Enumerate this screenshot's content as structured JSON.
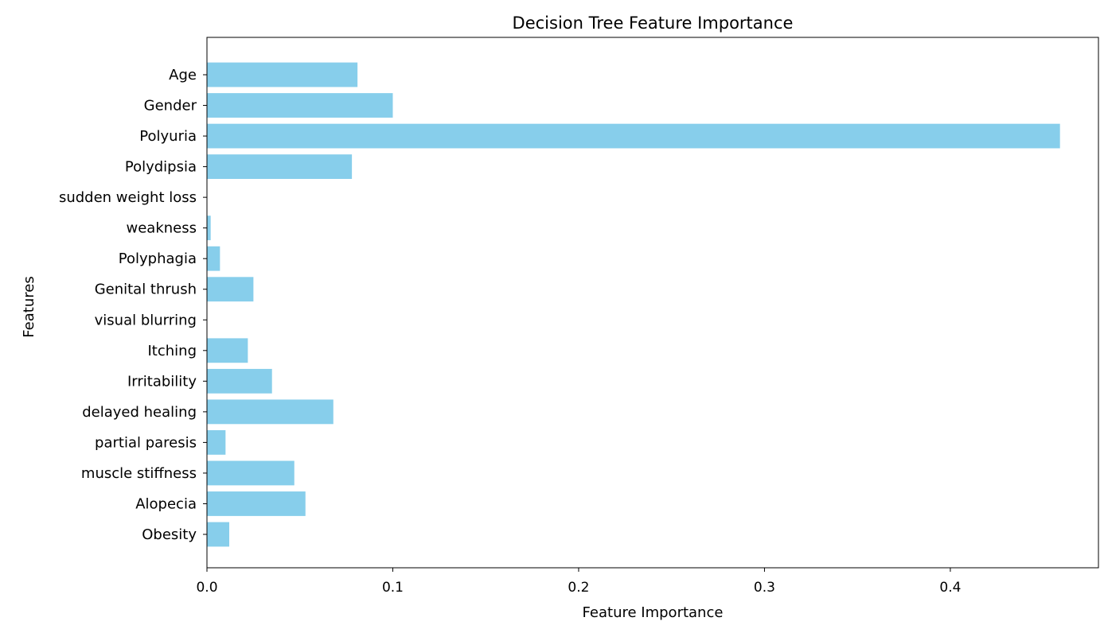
{
  "chart_data": {
    "type": "bar",
    "orientation": "horizontal",
    "title": "Decision Tree Feature Importance",
    "xlabel": "Feature Importance",
    "ylabel": "Features",
    "categories": [
      "Age",
      "Gender",
      "Polyuria",
      "Polydipsia",
      "sudden weight loss",
      "weakness",
      "Polyphagia",
      "Genital thrush",
      "visual blurring",
      "Itching",
      "Irritability",
      "delayed healing",
      "partial paresis",
      "muscle stiffness",
      "Alopecia",
      "Obesity"
    ],
    "values": [
      0.081,
      0.1,
      0.459,
      0.078,
      0.0,
      0.002,
      0.007,
      0.025,
      0.0,
      0.022,
      0.035,
      0.068,
      0.01,
      0.047,
      0.053,
      0.012
    ],
    "xlim": [
      0.0,
      0.4797
    ],
    "xticks": [
      0.0,
      0.1,
      0.2,
      0.3,
      0.4
    ],
    "xtick_labels": [
      "0.0",
      "0.1",
      "0.2",
      "0.3",
      "0.4"
    ],
    "grid": false,
    "bar_color": "#87ceeb"
  }
}
